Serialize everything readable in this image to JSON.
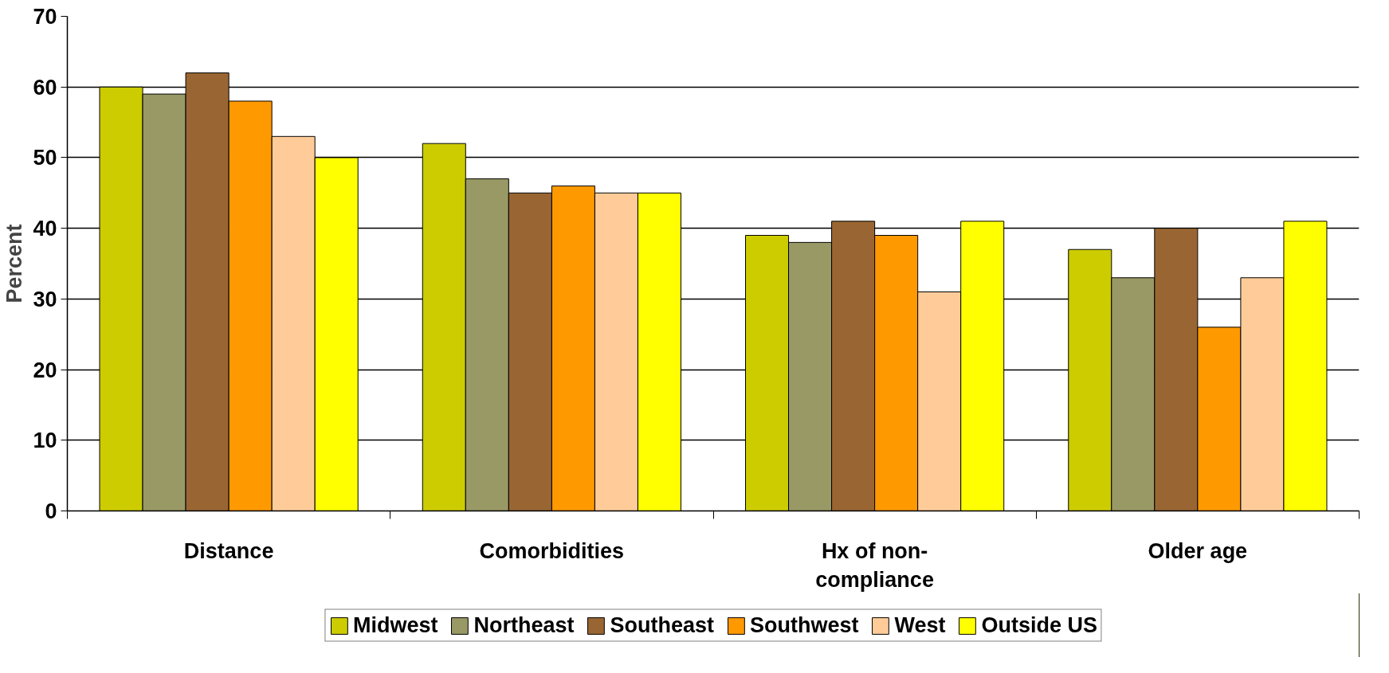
{
  "chart_data": {
    "type": "bar",
    "ylabel": "Percent",
    "categories": [
      "Distance",
      "Comorbidities",
      "Hx of non-compliance",
      "Older age"
    ],
    "series": [
      {
        "name": "Midwest",
        "color": "#cccc00",
        "values": [
          60,
          52,
          39,
          37
        ]
      },
      {
        "name": "Northeast",
        "color": "#999966",
        "values": [
          59,
          47,
          38,
          33
        ]
      },
      {
        "name": "Southeast",
        "color": "#996633",
        "values": [
          62,
          45,
          41,
          40
        ]
      },
      {
        "name": "Southwest",
        "color": "#ff9900",
        "values": [
          58,
          46,
          39,
          26
        ]
      },
      {
        "name": "West",
        "color": "#ffcc99",
        "values": [
          53,
          45,
          31,
          33
        ]
      },
      {
        "name": "Outside US",
        "color": "#ffff00",
        "values": [
          50,
          45,
          41,
          41
        ]
      }
    ],
    "ylim": [
      0,
      70
    ],
    "yticks": [
      0,
      10,
      20,
      30,
      40,
      50,
      60,
      70
    ],
    "grid": "y",
    "legend": "bottom"
  }
}
